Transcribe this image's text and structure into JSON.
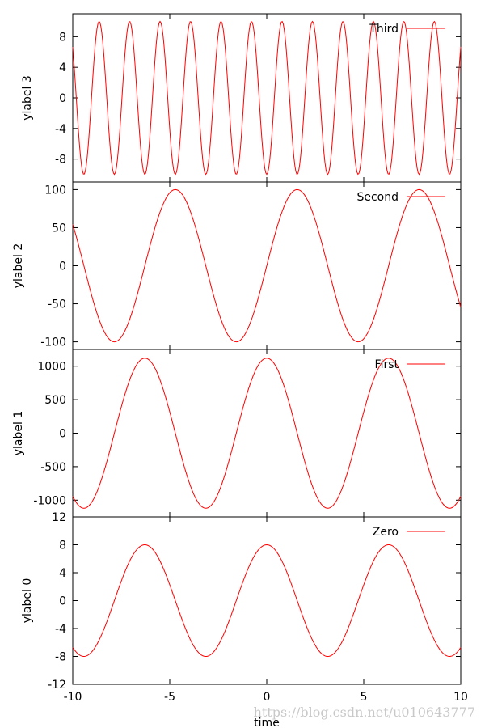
{
  "chart_data": [
    {
      "type": "line",
      "ylabel": "ylabel 3",
      "ylim": [
        -11,
        11
      ],
      "yticks": [
        "-8",
        "-4",
        "0",
        "4",
        "8"
      ],
      "ytick_values": [
        -8,
        -4,
        0,
        4,
        8
      ],
      "series": [
        {
          "name": "Third",
          "color": "#ff0000",
          "function": "sine",
          "amplitude": 10,
          "period": 1.5708,
          "peak_at": 0.785
        }
      ]
    },
    {
      "type": "line",
      "ylabel": "ylabel 2",
      "ylim": [
        -110,
        110
      ],
      "yticks": [
        "-100",
        "-50",
        "0",
        "50",
        "100"
      ],
      "ytick_values": [
        -100,
        -50,
        0,
        50,
        100
      ],
      "series": [
        {
          "name": "Second",
          "color": "#ff0000",
          "function": "sine",
          "amplitude": 100,
          "period": 6.2832,
          "peak_at": 1.5708
        }
      ]
    },
    {
      "type": "line",
      "ylabel": "ylabel 1",
      "ylim": [
        -1250,
        1250
      ],
      "yticks": [
        "-1000",
        "-500",
        "0",
        "500",
        "1000"
      ],
      "ytick_values": [
        -1000,
        -500,
        0,
        500,
        1000
      ],
      "series": [
        {
          "name": "First",
          "color": "#ff0000",
          "function": "cosine",
          "amplitude": 1120,
          "period": 6.2832,
          "peak_at": 0
        }
      ]
    },
    {
      "type": "line",
      "ylabel": "ylabel 0",
      "xlabel": "time",
      "xlim": [
        -10,
        10
      ],
      "xticks": [
        "-10",
        "-5",
        "0",
        "5",
        "10"
      ],
      "xtick_values": [
        -10,
        -5,
        0,
        5,
        10
      ],
      "ylim": [
        -12,
        12
      ],
      "yticks": [
        "-12",
        "-8",
        "-4",
        "0",
        "4",
        "8",
        "12"
      ],
      "ytick_values": [
        -12,
        -8,
        -4,
        0,
        4,
        8,
        12
      ],
      "series": [
        {
          "name": "Zero",
          "color": "#ff0000",
          "function": "cosine",
          "amplitude": 8,
          "period": 6.2832,
          "peak_at": 0
        }
      ]
    }
  ],
  "watermark": "https://blog.csdn.net/u010643777"
}
